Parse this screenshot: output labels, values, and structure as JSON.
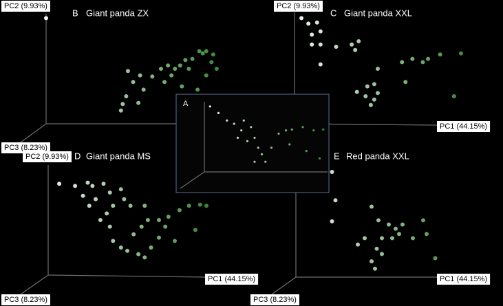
{
  "chart_data": [
    {
      "type": "scatter",
      "letter": "B",
      "title": "Giant panda ZX",
      "y_label": "PC2 (9.93%)",
      "z_label": "PC3 (8.23%)",
      "xlim": [
        0,
        100
      ],
      "ylim": [
        0,
        100
      ],
      "color_low": "#ffffff",
      "color_high": "#3d8f3a",
      "x": [
        0,
        43,
        44,
        46,
        47,
        50,
        54,
        56,
        61,
        66,
        70,
        72,
        74,
        77,
        80,
        82,
        84,
        87,
        88,
        90,
        92,
        95,
        96,
        98,
        53,
        68,
        78,
        92
      ],
      "values": [
        96,
        12,
        18,
        25,
        48,
        38,
        44,
        31,
        43,
        50,
        53,
        44,
        50,
        53,
        58,
        50,
        59,
        31,
        66,
        64,
        66,
        56,
        63,
        50,
        19,
        38,
        34,
        44
      ]
    },
    {
      "type": "scatter",
      "letter": "C",
      "title": "Giant panda XXL",
      "x_label": "PC1 (44.15%)",
      "y_label": "PC2 (9.93%)",
      "xlim": [
        0,
        100
      ],
      "ylim": [
        0,
        100
      ],
      "color_low": "#ffffff",
      "color_high": "#3d8f3a",
      "x": [
        4,
        8,
        13,
        10,
        15,
        10,
        15,
        24,
        15,
        33,
        37,
        35,
        48,
        36,
        42,
        46,
        41,
        44,
        48,
        46,
        62,
        68,
        74,
        77,
        84,
        96,
        92,
        64
      ],
      "values": [
        96,
        91,
        92,
        81,
        84,
        72,
        72,
        70,
        54,
        72,
        75,
        67,
        50,
        29,
        34,
        36,
        25,
        17,
        28,
        22,
        56,
        59,
        56,
        59,
        63,
        64,
        25,
        38
      ]
    },
    {
      "type": "scatter",
      "letter": "D",
      "title": "Giant panda MS",
      "x_label": "PC1 (44.15%)",
      "y_label": "PC2 (9.93%)",
      "z_label": "PC3 (8.23%)",
      "xlim": [
        0,
        100
      ],
      "ylim": [
        0,
        100
      ],
      "color_low": "#ffffff",
      "color_high": "#3d8f3a",
      "x": [
        7,
        17,
        25,
        28,
        35,
        22,
        30,
        39,
        46,
        48,
        41,
        37,
        39,
        41,
        46,
        50,
        57,
        61,
        54,
        59,
        63,
        70,
        76,
        83,
        89,
        96,
        100,
        65,
        70,
        80,
        93,
        26,
        33,
        52,
        61,
        74
      ],
      "values": [
        83,
        81,
        84,
        81,
        83,
        72,
        69,
        75,
        78,
        69,
        63,
        56,
        44,
        31,
        25,
        22,
        19,
        16,
        37,
        44,
        50,
        50,
        53,
        59,
        63,
        64,
        63,
        25,
        34,
        31,
        41,
        63,
        50,
        63,
        63,
        44
      ]
    },
    {
      "type": "scatter",
      "letter": "E",
      "title": "Red panda XXL",
      "x_label": "PC1 (44.15%)",
      "z_label": "PC3 (8.23%)",
      "xlim": [
        0,
        100
      ],
      "ylim": [
        0,
        100
      ],
      "color_low": "#ffffff",
      "color_high": "#3d8f3a",
      "x": [
        21,
        23,
        21,
        44,
        48,
        54,
        58,
        62,
        60,
        56,
        50,
        47,
        44,
        46,
        36,
        68,
        74,
        76,
        81,
        50,
        40
      ],
      "values": [
        100,
        73,
        53,
        67,
        54,
        50,
        46,
        50,
        41,
        37,
        37,
        27,
        15,
        8,
        31,
        37,
        54,
        41,
        18,
        22,
        37
      ]
    },
    {
      "type": "scatter",
      "letter": "A",
      "xlim": [
        0,
        100
      ],
      "ylim": [
        0,
        100
      ],
      "color_low": "#ffffff",
      "color_high": "#3d8f3a",
      "x": [
        3,
        10,
        17,
        23,
        29,
        31,
        37,
        40,
        43,
        46,
        40,
        49,
        54,
        60,
        66,
        71,
        80,
        89,
        97,
        69,
        83,
        94,
        34,
        26
      ],
      "values": [
        96,
        88,
        79,
        75,
        67,
        79,
        71,
        58,
        46,
        38,
        29,
        29,
        46,
        63,
        67,
        68,
        71,
        67,
        68,
        50,
        42,
        33,
        54,
        58
      ]
    }
  ]
}
